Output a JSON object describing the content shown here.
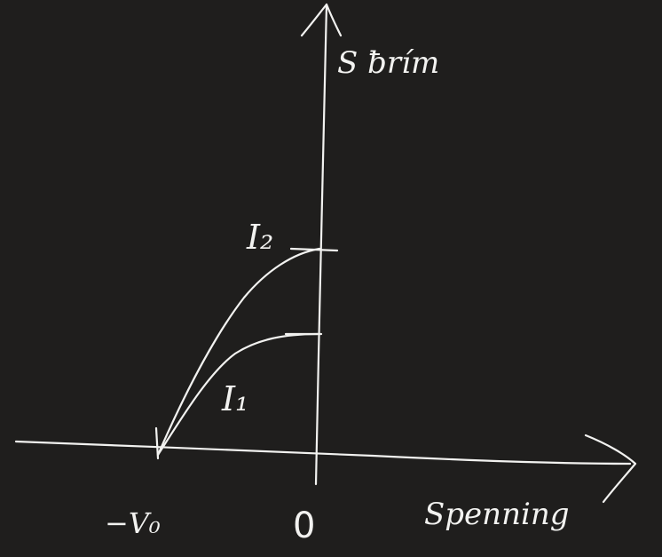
{
  "diagram": {
    "y_axis_label": "S ƀrím",
    "x_axis_label": "Spenning",
    "curve_labels": {
      "upper": "I₂",
      "lower": "I₁"
    },
    "x_ticks": {
      "negative_stop": "−V₀",
      "origin": "0"
    },
    "colors": {
      "background": "#1f1e1d",
      "ink": "#f2f2f0"
    }
  }
}
